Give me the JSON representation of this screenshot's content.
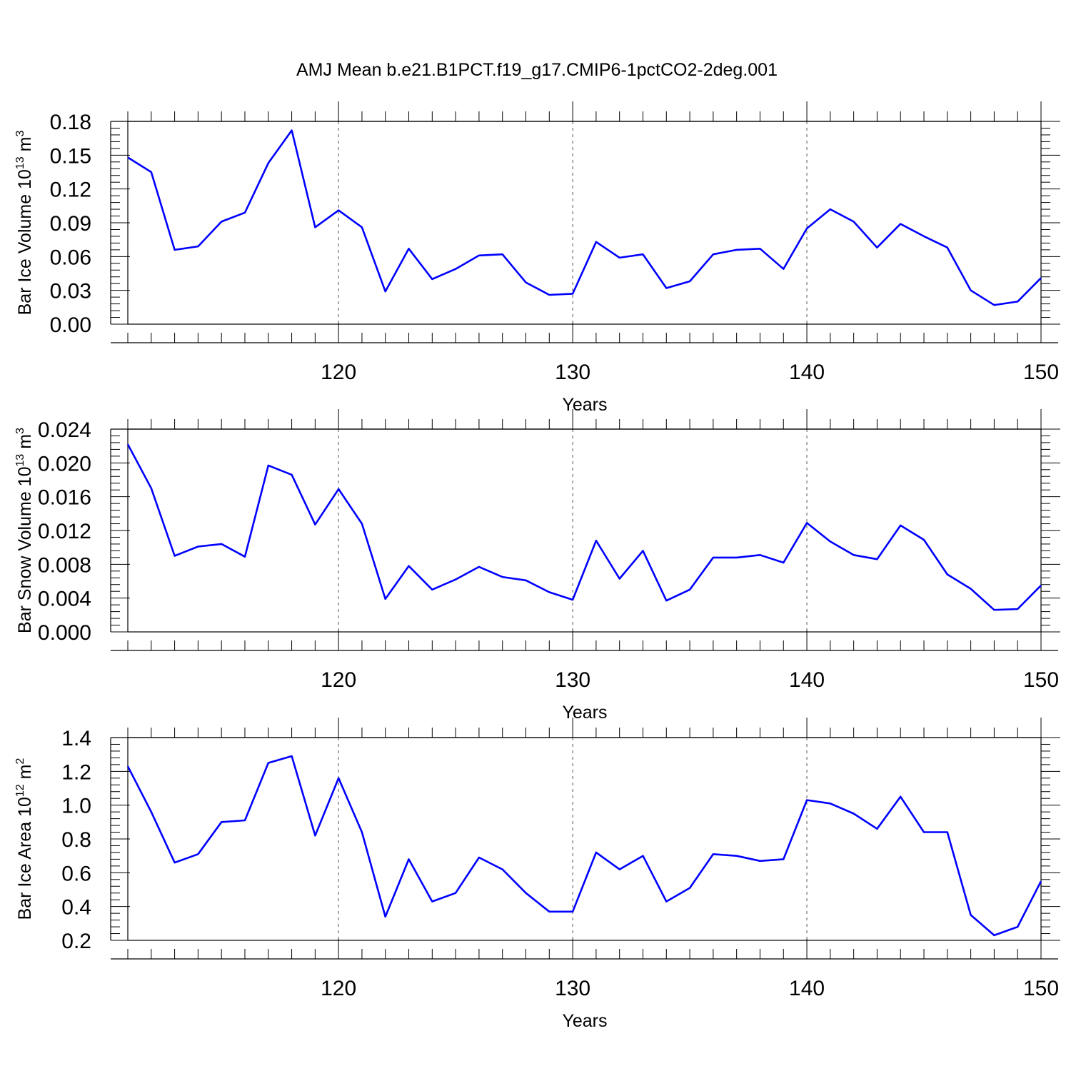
{
  "title": "AMJ Mean b.e21.B1PCT.f19_g17.CMIP6-1pctCO2-2deg.001",
  "colors": {
    "line": "#0000ff",
    "axis": "#000000",
    "grid": "#000000"
  },
  "chart_data": [
    {
      "type": "line",
      "xlabel": "Years",
      "ylabel": {
        "text": "Bar Ice Volume 10",
        "exp": "13",
        "unit": "m",
        "unit_exp": "3"
      },
      "xlim": [
        111,
        150
      ],
      "ylim": [
        0.0,
        0.18
      ],
      "xticks": [
        120,
        130,
        140,
        150
      ],
      "xtick_labels": [
        "120",
        "130",
        "140",
        "150"
      ],
      "yticks": [
        0.0,
        0.03,
        0.06,
        0.09,
        0.12,
        0.15,
        0.18
      ],
      "ytick_labels": [
        "0.00",
        "0.03",
        "0.06",
        "0.09",
        "0.12",
        "0.15",
        "0.18"
      ],
      "y_minor_step": 0.006,
      "grid": "vertical dashed at major x ticks",
      "x": [
        111,
        112,
        113,
        114,
        115,
        116,
        117,
        118,
        119,
        120,
        121,
        122,
        123,
        124,
        125,
        126,
        127,
        128,
        129,
        130,
        131,
        132,
        133,
        134,
        135,
        136,
        137,
        138,
        139,
        140,
        141,
        142,
        143,
        144,
        145,
        146,
        147,
        148,
        149,
        150
      ],
      "values": [
        0.148,
        0.135,
        0.066,
        0.069,
        0.091,
        0.099,
        0.143,
        0.172,
        0.086,
        0.101,
        0.086,
        0.029,
        0.067,
        0.04,
        0.049,
        0.061,
        0.062,
        0.037,
        0.026,
        0.027,
        0.073,
        0.059,
        0.062,
        0.032,
        0.038,
        0.062,
        0.066,
        0.067,
        0.049,
        0.085,
        0.102,
        0.091,
        0.068,
        0.089,
        0.078,
        0.068,
        0.03,
        0.017,
        0.02,
        0.041
      ]
    },
    {
      "type": "line",
      "xlabel": "Years",
      "ylabel": {
        "text": "Bar Snow Volume 10",
        "exp": "13",
        "unit": "m",
        "unit_exp": "3"
      },
      "xlim": [
        111,
        150
      ],
      "ylim": [
        0.0,
        0.024
      ],
      "xticks": [
        120,
        130,
        140,
        150
      ],
      "xtick_labels": [
        "120",
        "130",
        "140",
        "150"
      ],
      "yticks": [
        0.0,
        0.004,
        0.008,
        0.012,
        0.016,
        0.02,
        0.024
      ],
      "ytick_labels": [
        "0.000",
        "0.004",
        "0.008",
        "0.012",
        "0.016",
        "0.020",
        "0.024"
      ],
      "y_minor_step": 0.0008,
      "grid": "vertical dashed at major x ticks",
      "x": [
        111,
        112,
        113,
        114,
        115,
        116,
        117,
        118,
        119,
        120,
        121,
        122,
        123,
        124,
        125,
        126,
        127,
        128,
        129,
        130,
        131,
        132,
        133,
        134,
        135,
        136,
        137,
        138,
        139,
        140,
        141,
        142,
        143,
        144,
        145,
        146,
        147,
        148,
        149,
        150
      ],
      "values": [
        0.0222,
        0.017,
        0.009,
        0.0101,
        0.0104,
        0.0089,
        0.0197,
        0.0186,
        0.0127,
        0.0169,
        0.0128,
        0.0039,
        0.0078,
        0.005,
        0.0062,
        0.0077,
        0.0065,
        0.0061,
        0.0047,
        0.0038,
        0.0108,
        0.0063,
        0.0096,
        0.0037,
        0.005,
        0.0088,
        0.0088,
        0.0091,
        0.0082,
        0.0129,
        0.0107,
        0.0091,
        0.0086,
        0.0126,
        0.0109,
        0.0068,
        0.0051,
        0.0026,
        0.0027,
        0.0055
      ]
    },
    {
      "type": "line",
      "xlabel": "Years",
      "ylabel": {
        "text": "Bar Ice Area 10",
        "exp": "12",
        "unit": "m",
        "unit_exp": "2"
      },
      "xlim": [
        111,
        150
      ],
      "ylim": [
        0.2,
        1.4
      ],
      "xticks": [
        120,
        130,
        140,
        150
      ],
      "xtick_labels": [
        "120",
        "130",
        "140",
        "150"
      ],
      "yticks": [
        0.2,
        0.4,
        0.6,
        0.8,
        1.0,
        1.2,
        1.4
      ],
      "ytick_labels": [
        "0.2",
        "0.4",
        "0.6",
        "0.8",
        "1.0",
        "1.2",
        "1.4"
      ],
      "y_minor_step": 0.04,
      "grid": "vertical dashed at major x ticks",
      "x": [
        111,
        112,
        113,
        114,
        115,
        116,
        117,
        118,
        119,
        120,
        121,
        122,
        123,
        124,
        125,
        126,
        127,
        128,
        129,
        130,
        131,
        132,
        133,
        134,
        135,
        136,
        137,
        138,
        139,
        140,
        141,
        142,
        143,
        144,
        145,
        146,
        147,
        148,
        149,
        150
      ],
      "values": [
        1.23,
        0.96,
        0.66,
        0.71,
        0.9,
        0.91,
        1.25,
        1.29,
        0.82,
        1.16,
        0.84,
        0.34,
        0.68,
        0.43,
        0.48,
        0.69,
        0.62,
        0.48,
        0.37,
        0.37,
        0.72,
        0.62,
        0.7,
        0.43,
        0.51,
        0.71,
        0.7,
        0.67,
        0.68,
        1.03,
        1.01,
        0.95,
        0.86,
        1.05,
        0.84,
        0.84,
        0.35,
        0.23,
        0.28,
        0.55
      ]
    }
  ]
}
